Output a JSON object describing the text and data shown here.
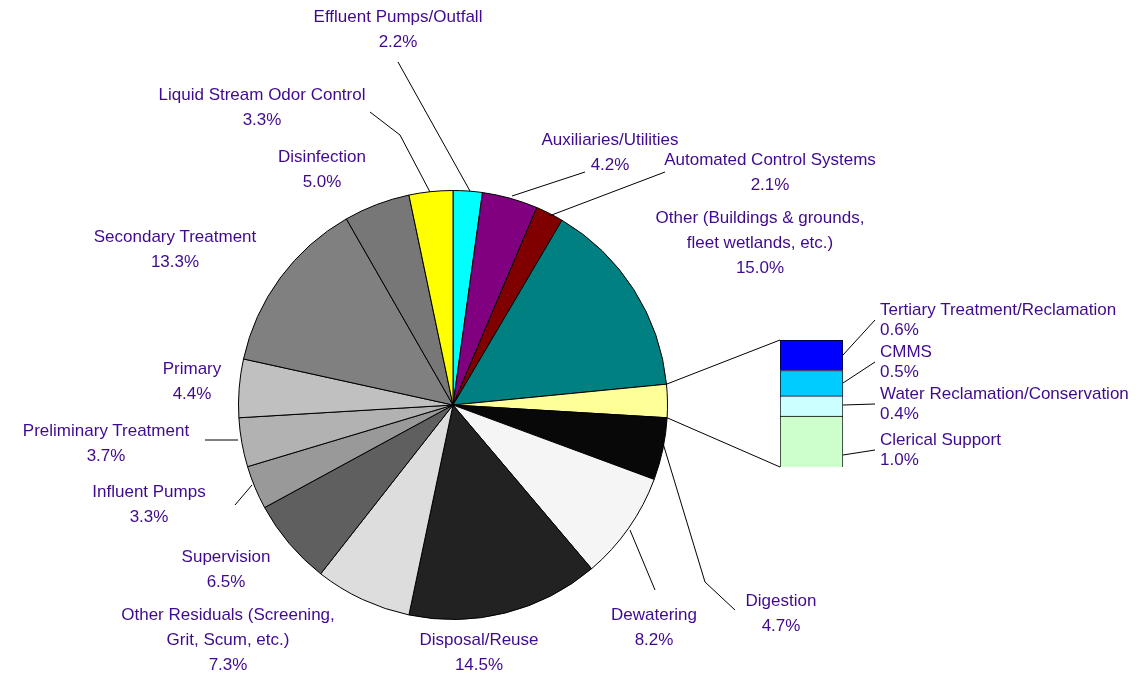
{
  "chart_data": [
    {
      "type": "pie",
      "categories": [
        "Effluent Pumps/Outfall",
        "Auxiliaries/Utilities",
        "Automated Control Systems",
        "Other (Buildings & grounds, fleet wetlands, etc.)",
        null,
        "Digestion",
        "Dewatering",
        "Disposal/Reuse",
        "Other Residuals (Screening, Grit, Scum, etc.)",
        "Supervision",
        "Influent Pumps",
        "Preliminary Treatment",
        "Primary",
        "Secondary Treatment",
        "Disinfection",
        "Liquid Stream Odor Control"
      ],
      "values": [
        2.2,
        4.2,
        2.1,
        15.0,
        2.5,
        4.7,
        8.2,
        14.5,
        7.3,
        6.5,
        3.3,
        3.7,
        4.4,
        13.3,
        5.0,
        3.3
      ],
      "colors": [
        "#00ffff",
        "#800080",
        "#800000",
        "#008080",
        "#ffff99",
        "#080808",
        "#f5f5f5",
        "#222222",
        "#dddddd",
        "#5f5f5f",
        "#999999",
        "#b2b2b2",
        "#c0c0c0",
        "#808080",
        "#777777",
        "#ffff00"
      ],
      "value_labels": [
        "2.2%",
        "4.2%",
        "2.1%",
        "15.0%",
        null,
        "4.7%",
        "8.2%",
        "14.5%",
        "7.3%",
        "6.5%",
        "3.3%",
        "3.7%",
        "4.4%",
        "13.3%",
        "5.0%",
        "3.3%"
      ]
    },
    {
      "type": "bar",
      "stacked": true,
      "categories": [
        null
      ],
      "series": [
        {
          "name": "Clerical Support",
          "color": "#ccffcc",
          "values": [
            1.0
          ],
          "value_labels": [
            "1.0%"
          ]
        },
        {
          "name": "Water Reclamation/Conservation",
          "color": "#ccffff",
          "values": [
            0.4
          ],
          "value_labels": [
            "0.4%"
          ]
        },
        {
          "name": "CMMS",
          "color": "#00ccff",
          "values": [
            0.5
          ],
          "value_labels": [
            "0.5%"
          ]
        },
        {
          "name": "Tertiary Treatment/Reclamation",
          "color": "#0000ff",
          "values": [
            0.6
          ],
          "value_labels": [
            "0.6%"
          ]
        }
      ]
    }
  ]
}
